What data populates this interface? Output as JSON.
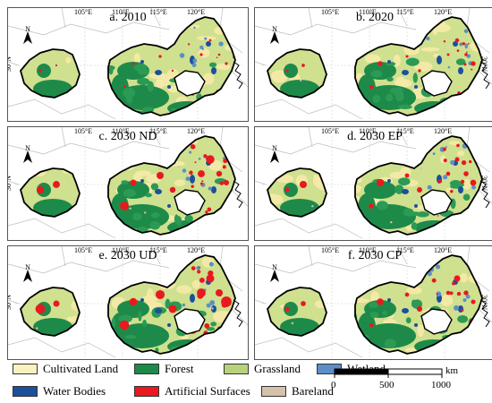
{
  "panels": [
    {
      "title": "a. 2010"
    },
    {
      "title": "b. 2020"
    },
    {
      "title": "c. 2030 ND"
    },
    {
      "title": "d. 2030 EP"
    },
    {
      "title": "e. 2030 UD"
    },
    {
      "title": "f. 2030 CP"
    }
  ],
  "graticule": {
    "lon_labels": [
      "105°E",
      "110°E",
      "115°E",
      "120°E"
    ],
    "lat_label": "30°N",
    "north_label": "N"
  },
  "legend": {
    "items": [
      {
        "label": "Cultivated Land",
        "color": "#fbf1bf"
      },
      {
        "label": "Forest",
        "color": "#1e8a4a"
      },
      {
        "label": "Grassland",
        "color": "#b7d37a"
      },
      {
        "label": "Wetland",
        "color": "#5c8fc6"
      },
      {
        "label": "Water Bodies",
        "color": "#1c4f9c"
      },
      {
        "label": "Artificial Surfaces",
        "color": "#e8191f"
      },
      {
        "label": "Bareland",
        "color": "#d5c2a8"
      }
    ]
  },
  "scalebar": {
    "unit": "km",
    "ticks": [
      "0",
      "500",
      "1000"
    ]
  }
}
